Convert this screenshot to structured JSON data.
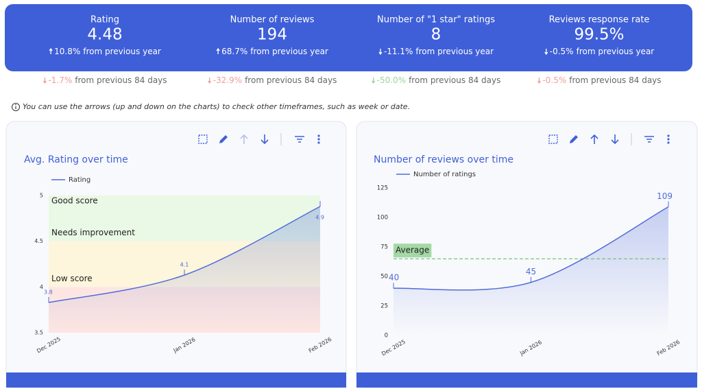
{
  "kpis": [
    {
      "title": "Rating",
      "value": "4.48",
      "change": "10.8%",
      "change_text": "from previous year",
      "period_change": "-1.7%",
      "period_text": "from previous 84 days",
      "period_color": "#f19c9c"
    },
    {
      "title": "Number of reviews",
      "value": "194",
      "change": "68.7%",
      "change_text": "from previous year",
      "period_change": "-32.9%",
      "period_text": "from previous 84 days",
      "period_color": "#f19c9c"
    },
    {
      "title": "Number of \"1 star\" ratings",
      "value": "8",
      "change": "-11.1%",
      "change_text": "from previous year",
      "period_change": "-50.0%",
      "period_text": "from previous 84 days",
      "period_color": "#9cd39c"
    },
    {
      "title": "Reviews response rate",
      "value": "99.5%",
      "change": "-0.5%",
      "change_text": "from previous year",
      "period_change": "-0.5%",
      "period_text": "from previous 84 days",
      "period_color": "#f19c9c"
    }
  ],
  "note": "You can use the arrows (up and down on the charts) to check other timeframes, such as week or date.",
  "chart_data": [
    {
      "type": "line",
      "title": "Avg. Rating over time",
      "categories": [
        "Dec 2025",
        "Jan 2026",
        "Feb 2026"
      ],
      "series": [
        {
          "name": "Rating",
          "color": "#4f6bd8",
          "values": [
            3.83,
            4.13,
            4.88
          ],
          "value_labels": [
            "3.8",
            "4.1",
            "4.9"
          ]
        }
      ],
      "ylim": [
        3.5,
        5
      ],
      "yticks": [
        3.5,
        4,
        4.5,
        5
      ],
      "bands": [
        {
          "label": "Good score",
          "from": 4.5,
          "to": 5,
          "color": "#eaf8e6"
        },
        {
          "label": "Needs improvement",
          "from": 4,
          "to": 4.5,
          "color": "#fdf5dc"
        },
        {
          "label": "Low score",
          "from": 3.5,
          "to": 4,
          "color": "#fde6e2"
        }
      ]
    },
    {
      "type": "line",
      "title": "Number of reviews over time",
      "categories": [
        "Dec 2025",
        "Jan 2026",
        "Feb 2026"
      ],
      "series": [
        {
          "name": "Number of ratings",
          "color": "#4f6bd8",
          "values": [
            40,
            45,
            109
          ]
        }
      ],
      "ylim": [
        0,
        125
      ],
      "yticks": [
        0,
        25,
        50,
        75,
        100,
        125
      ],
      "average": {
        "label": "Average",
        "value": 65,
        "color": "#5cb85c"
      }
    }
  ]
}
